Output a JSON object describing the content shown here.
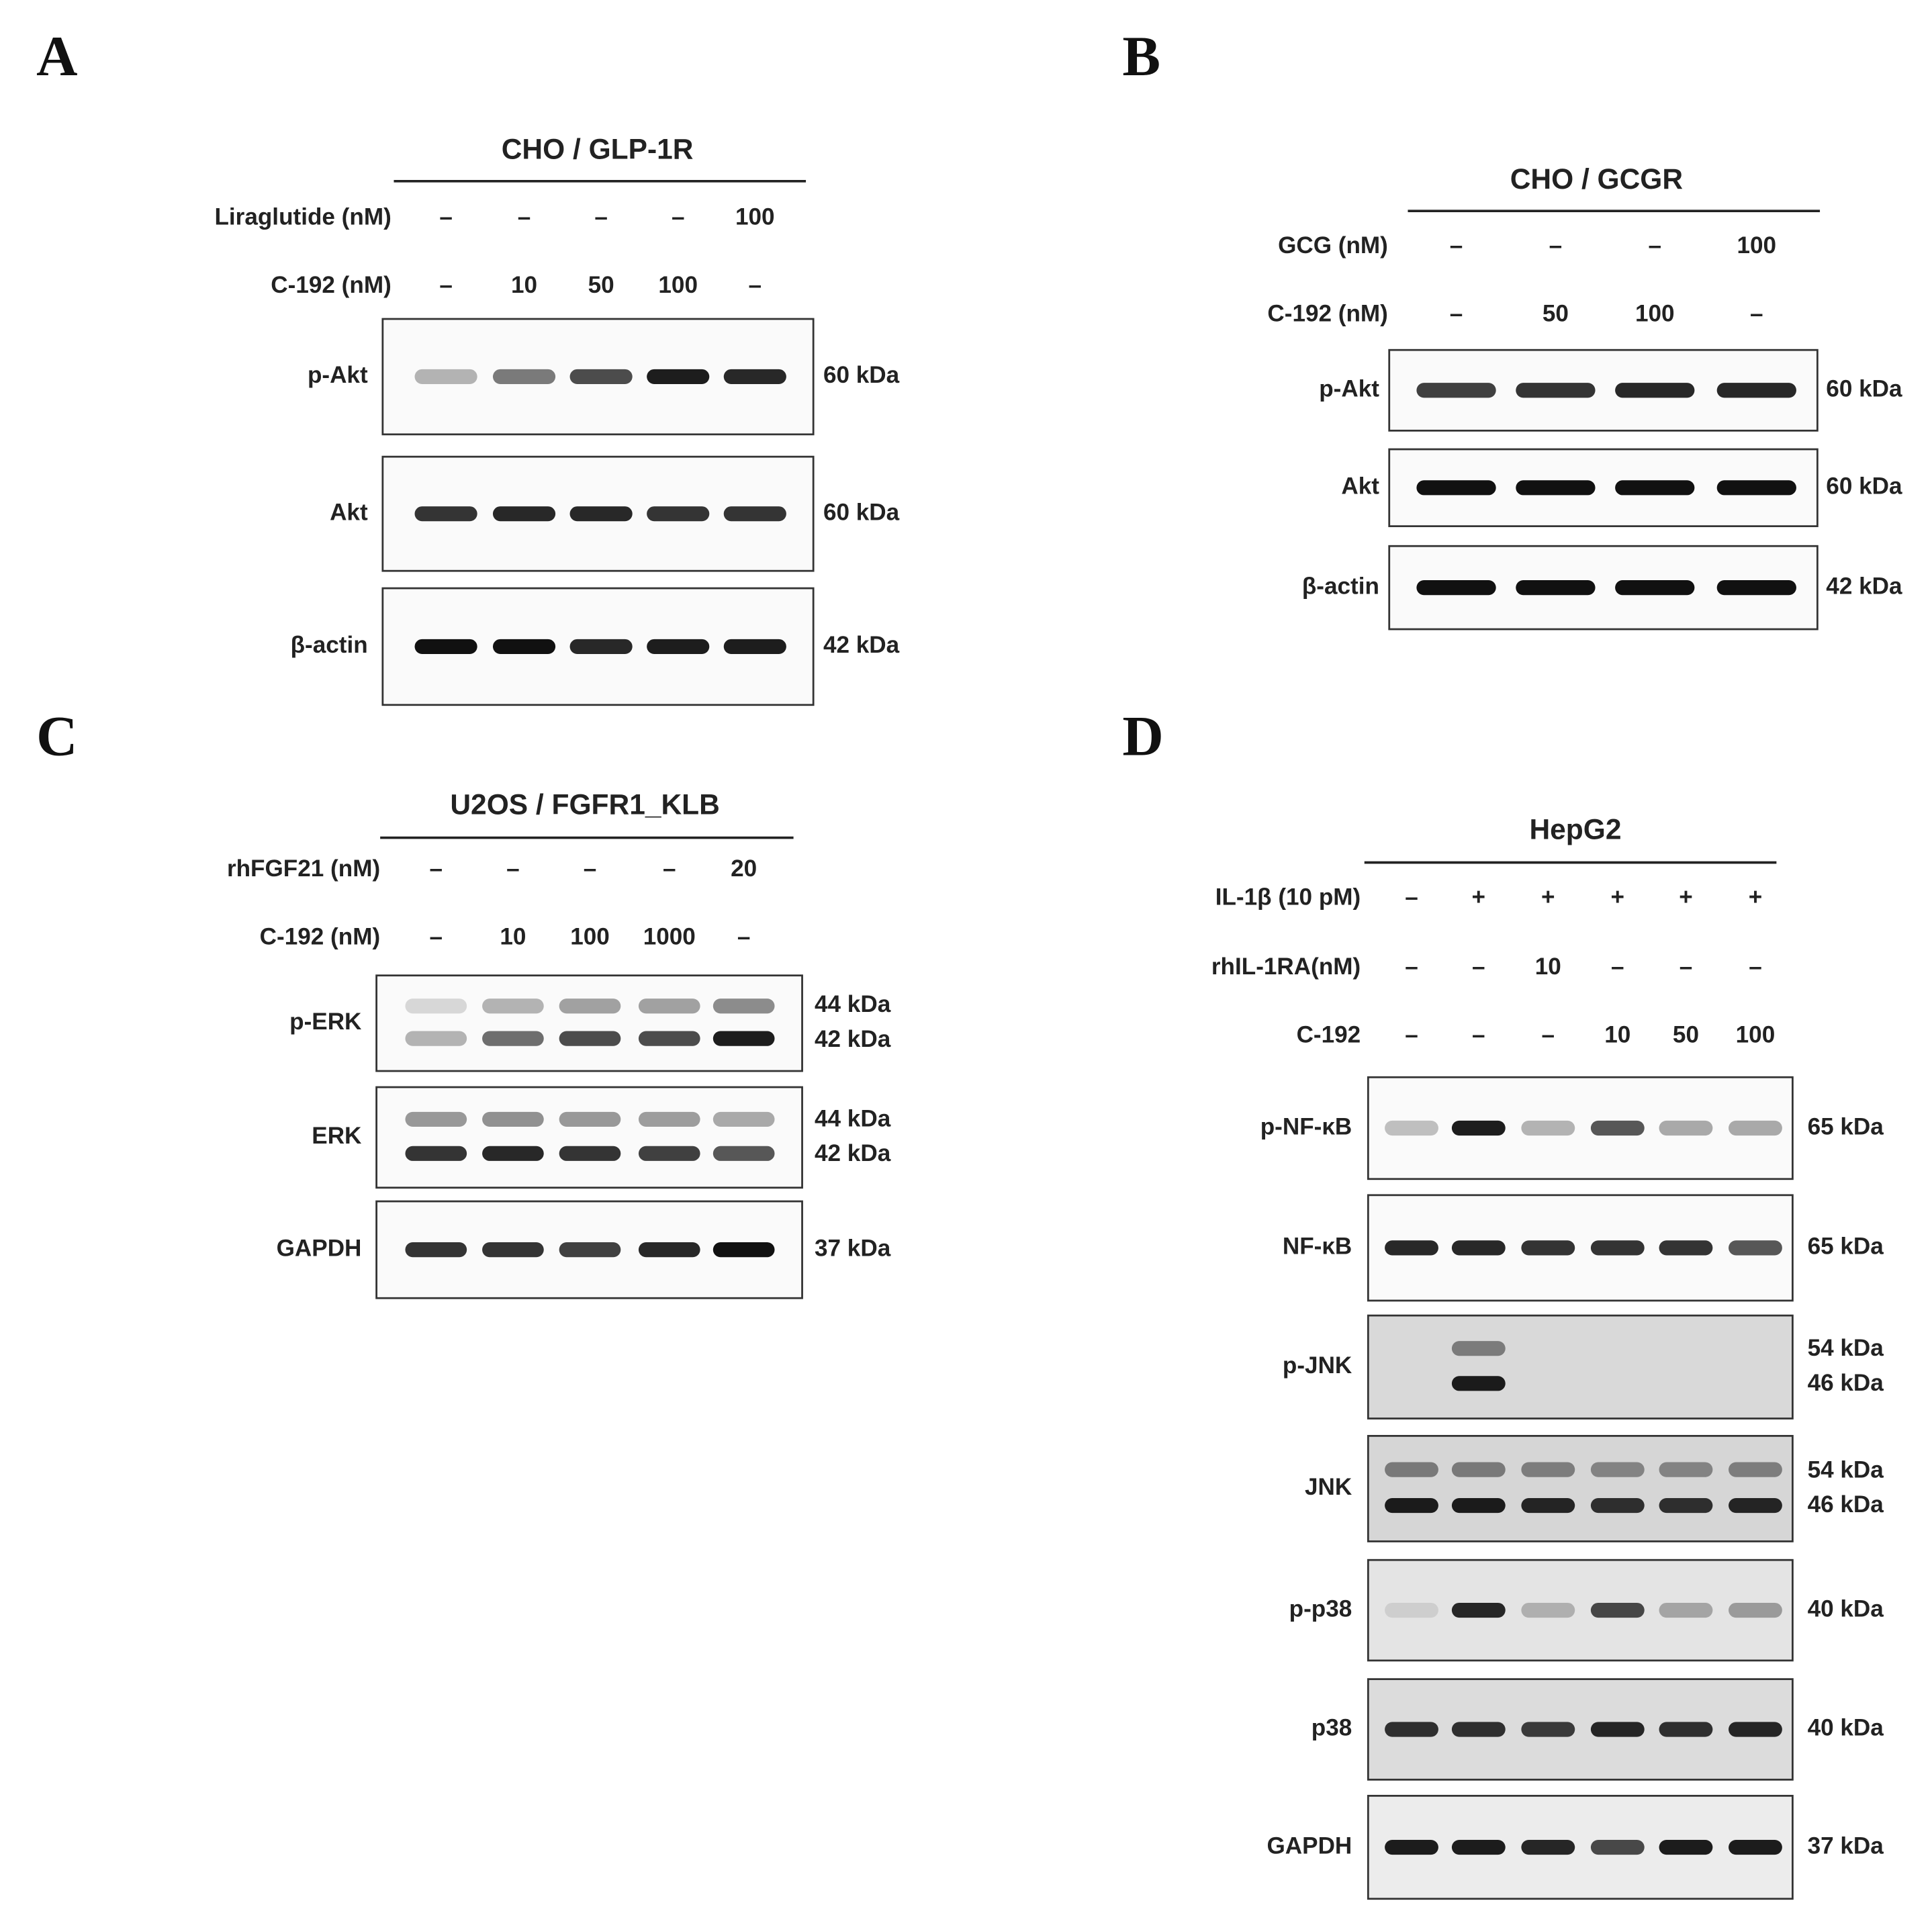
{
  "panels": [
    {
      "letter": "A",
      "title": "CHO / GLP-1R",
      "conditions": [
        {
          "label": "Liraglutide (nM)",
          "values": [
            "–",
            "–",
            "–",
            "–",
            "100"
          ]
        },
        {
          "label": "C-192 (nM)",
          "values": [
            "–",
            "10",
            "50",
            "100",
            "–"
          ]
        }
      ],
      "blots": [
        {
          "label": "p-Akt",
          "sizes": [
            "60 kDa"
          ]
        },
        {
          "label": "Akt",
          "sizes": [
            "60 kDa"
          ]
        },
        {
          "label": "β-actin",
          "sizes": [
            "42 kDa"
          ]
        }
      ]
    },
    {
      "letter": "B",
      "title": "CHO / GCGR",
      "conditions": [
        {
          "label": "GCG (nM)",
          "values": [
            "–",
            "–",
            "–",
            "100"
          ]
        },
        {
          "label": "C-192 (nM)",
          "values": [
            "–",
            "50",
            "100",
            "–"
          ]
        }
      ],
      "blots": [
        {
          "label": "p-Akt",
          "sizes": [
            "60 kDa"
          ]
        },
        {
          "label": "Akt",
          "sizes": [
            "60 kDa"
          ]
        },
        {
          "label": "β-actin",
          "sizes": [
            "42 kDa"
          ]
        }
      ]
    },
    {
      "letter": "C",
      "title": "U2OS / FGFR1_KLB",
      "conditions": [
        {
          "label": "rhFGF21 (nM)",
          "values": [
            "–",
            "–",
            "–",
            "–",
            "20"
          ]
        },
        {
          "label": "C-192 (nM)",
          "values": [
            "–",
            "10",
            "100",
            "1000",
            "–"
          ]
        }
      ],
      "blots": [
        {
          "label": "p-ERK",
          "sizes": [
            "44 kDa",
            "42 kDa"
          ]
        },
        {
          "label": "ERK",
          "sizes": [
            "44 kDa",
            "42 kDa"
          ]
        },
        {
          "label": "GAPDH",
          "sizes": [
            "37 kDa"
          ]
        }
      ]
    },
    {
      "letter": "D",
      "title": "HepG2",
      "conditions": [
        {
          "label": "IL-1β (10 pM)",
          "values": [
            "–",
            "+",
            "+",
            "+",
            "+",
            "+"
          ]
        },
        {
          "label": "rhIL-1RA(nM)",
          "values": [
            "–",
            "–",
            "10",
            "–",
            "–",
            "–"
          ]
        },
        {
          "label": "C-192",
          "values": [
            "–",
            "–",
            "–",
            "10",
            "50",
            "100"
          ]
        }
      ],
      "blots": [
        {
          "label": "p-NF-κB",
          "sizes": [
            "65 kDa"
          ]
        },
        {
          "label": "NF-κB",
          "sizes": [
            "65 kDa"
          ]
        },
        {
          "label": "p-JNK",
          "sizes": [
            "54 kDa",
            "46 kDa"
          ]
        },
        {
          "label": "JNK",
          "sizes": [
            "54 kDa",
            "46 kDa"
          ]
        },
        {
          "label": "p-p38",
          "sizes": [
            "40 kDa"
          ]
        },
        {
          "label": "p38",
          "sizes": [
            "40 kDa"
          ]
        },
        {
          "label": "GAPDH",
          "sizes": [
            "37 kDa"
          ]
        }
      ]
    }
  ]
}
